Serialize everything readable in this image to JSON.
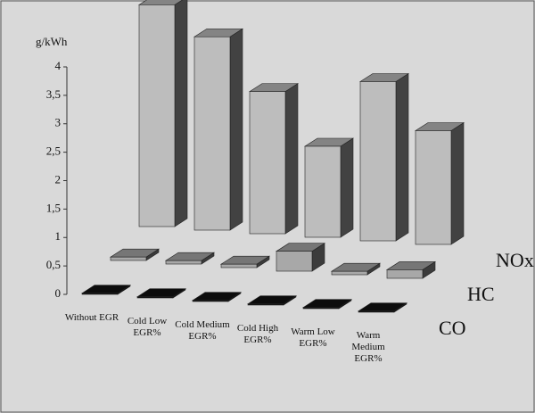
{
  "chart_data": {
    "type": "bar3d",
    "y_label": "g/kWh",
    "categories": [
      "Without EGR",
      "Cold Low EGR%",
      "Cold Medium EGR%",
      "Cold High EGR%",
      "Warm Low EGR%",
      "Warm Medium EGR%"
    ],
    "series": [
      {
        "name": "CO",
        "color": "#111111",
        "values": [
          0.02,
          0.02,
          0.02,
          0.02,
          0.02,
          0.02
        ]
      },
      {
        "name": "HC",
        "color": "#a8a8a8",
        "values": [
          0.06,
          0.06,
          0.06,
          0.35,
          0.06,
          0.15
        ]
      },
      {
        "name": "NOx",
        "color": "#bdbdbd",
        "values": [
          3.9,
          3.4,
          2.5,
          1.6,
          2.8,
          2.0
        ]
      }
    ],
    "ylim": [
      0,
      4
    ],
    "yticks": [
      0,
      {
        "value": 0.5,
        "label": "0,5"
      },
      1,
      {
        "value": 1.5,
        "label": "1,5"
      },
      2,
      {
        "value": 2.5,
        "label": "2,5"
      },
      3,
      {
        "value": 3.5,
        "label": "3,5"
      },
      4
    ]
  }
}
